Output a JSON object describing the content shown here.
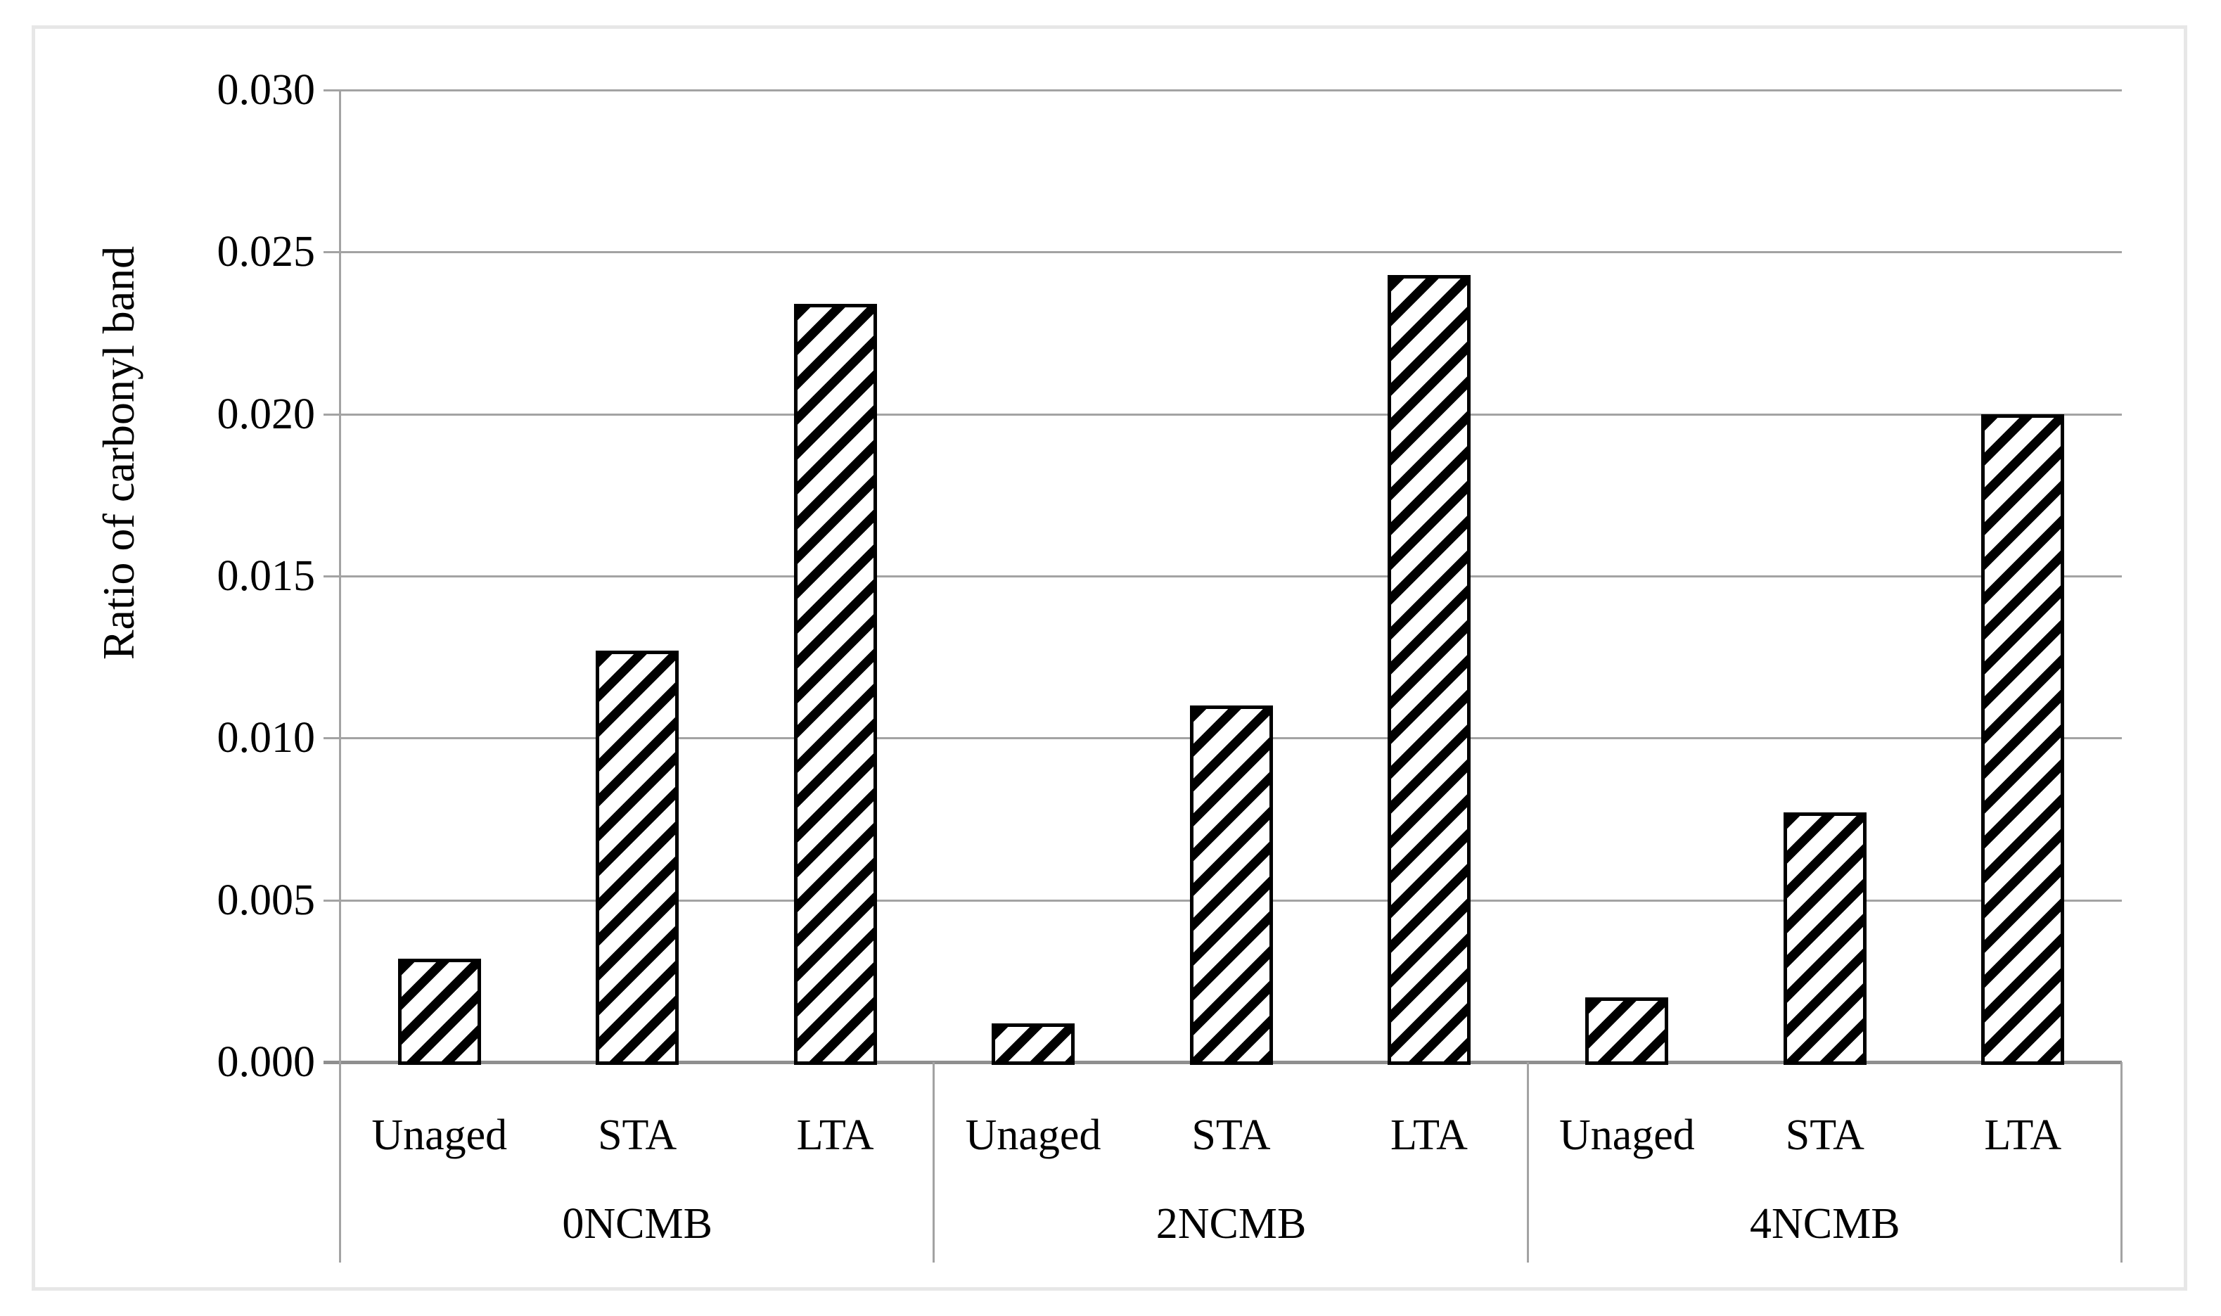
{
  "figure": {
    "background": "#ffffff",
    "border_color": "#e7e7e7"
  },
  "chart_data": {
    "type": "bar",
    "title": "",
    "xlabel": "",
    "ylabel": "Ratio of carbonyl band",
    "ylim": [
      0,
      0.03
    ],
    "ytick_step": 0.005,
    "yticks": [
      "0.030",
      "0.025",
      "0.020",
      "0.015",
      "0.010",
      "0.005",
      "0.000"
    ],
    "grid": true,
    "legend_position": "none",
    "categories_per_group": [
      "Unaged",
      "STA",
      "LTA"
    ],
    "groups": [
      {
        "label": "0NCMB",
        "categories": [
          "Unaged",
          "STA",
          "LTA"
        ],
        "values": [
          0.0032,
          0.0127,
          0.0234
        ]
      },
      {
        "label": "2NCMB",
        "categories": [
          "Unaged",
          "STA",
          "LTA"
        ],
        "values": [
          0.0012,
          0.011,
          0.0243
        ]
      },
      {
        "label": "4NCMB",
        "categories": [
          "Unaged",
          "STA",
          "LTA"
        ],
        "values": [
          0.002,
          0.0077,
          0.02
        ]
      }
    ],
    "bar_style": {
      "fill": "#ffffff",
      "hatch": "diagonal-forward-slash",
      "hatch_color": "#000000",
      "border_color": "#000000"
    },
    "gridline_color": "#a3a3a3",
    "axis_color": "#8f8f8f"
  }
}
